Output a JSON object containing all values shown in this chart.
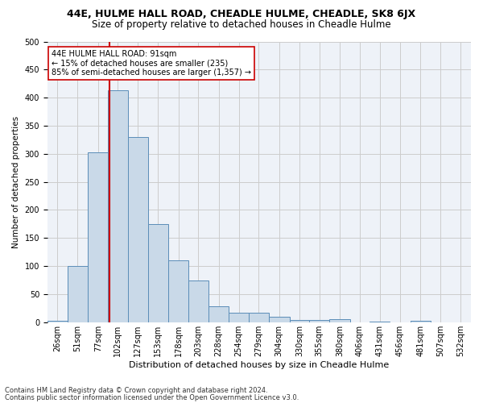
{
  "title1": "44E, HULME HALL ROAD, CHEADLE HULME, CHEADLE, SK8 6JX",
  "title2": "Size of property relative to detached houses in Cheadle Hulme",
  "xlabel": "Distribution of detached houses by size in Cheadle Hulme",
  "ylabel": "Number of detached properties",
  "footer1": "Contains HM Land Registry data © Crown copyright and database right 2024.",
  "footer2": "Contains public sector information licensed under the Open Government Licence v3.0.",
  "annotation_line1": "44E HULME HALL ROAD: 91sqm",
  "annotation_line2": "← 15% of detached houses are smaller (235)",
  "annotation_line3": "85% of semi-detached houses are larger (1,357) →",
  "bar_color": "#c9d9e8",
  "bar_edge_color": "#5b8db8",
  "vline_x": 91,
  "vline_color": "#cc0000",
  "categories": [
    "26sqm",
    "51sqm",
    "77sqm",
    "102sqm",
    "127sqm",
    "153sqm",
    "178sqm",
    "203sqm",
    "228sqm",
    "254sqm",
    "279sqm",
    "304sqm",
    "330sqm",
    "355sqm",
    "380sqm",
    "406sqm",
    "431sqm",
    "456sqm",
    "481sqm",
    "507sqm",
    "532sqm"
  ],
  "bin_edges": [
    13.5,
    38.5,
    64.5,
    89.5,
    114.5,
    139.5,
    165.5,
    190.5,
    215.5,
    241.5,
    266.5,
    291.5,
    317.5,
    342.5,
    367.5,
    393.5,
    418.5,
    443.5,
    469.5,
    494.5,
    519.5,
    545.5
  ],
  "values": [
    3,
    100,
    303,
    413,
    330,
    175,
    110,
    75,
    28,
    17,
    17,
    10,
    4,
    4,
    5,
    0,
    1,
    0,
    2,
    0,
    0
  ],
  "ylim": [
    0,
    500
  ],
  "yticks": [
    0,
    50,
    100,
    150,
    200,
    250,
    300,
    350,
    400,
    450,
    500
  ],
  "grid_color": "#cccccc",
  "bg_color": "#eef2f8",
  "title1_fontsize": 9,
  "title2_fontsize": 8.5,
  "ylabel_fontsize": 7.5,
  "xlabel_fontsize": 8,
  "annotation_box_color": "#ffffff",
  "annotation_box_edgecolor": "#cc0000",
  "annotation_fontsize": 7,
  "tick_fontsize": 7,
  "footer_fontsize": 6
}
